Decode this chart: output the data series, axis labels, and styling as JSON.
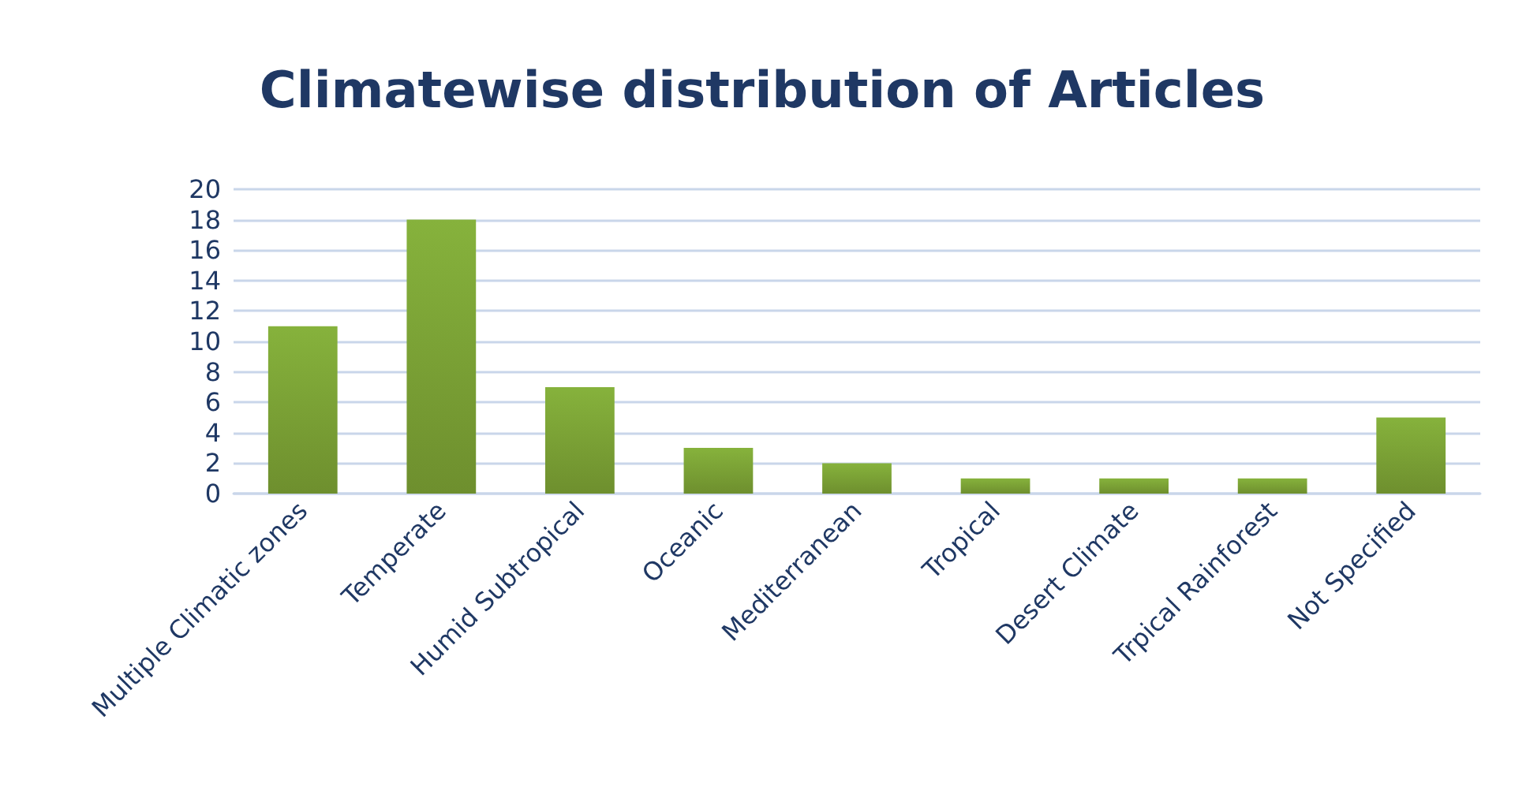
{
  "chart_data": {
    "type": "bar",
    "title": "Climatewise distribution of Articles",
    "categories": [
      "Multiple Climatic zones",
      "Temperate",
      "Humid Subtropical",
      "Oceanic",
      "Mediterranean",
      "Tropical",
      "Desert Climate",
      "Trpical Rainforest",
      "Not Specified"
    ],
    "values": [
      11,
      18,
      7,
      3,
      2,
      1,
      1,
      1,
      5
    ],
    "color": "#86b23c",
    "ylim": [
      0,
      20
    ],
    "yticks": [
      0,
      2,
      4,
      6,
      8,
      10,
      12,
      14,
      16,
      18,
      20
    ],
    "grid": "y"
  }
}
